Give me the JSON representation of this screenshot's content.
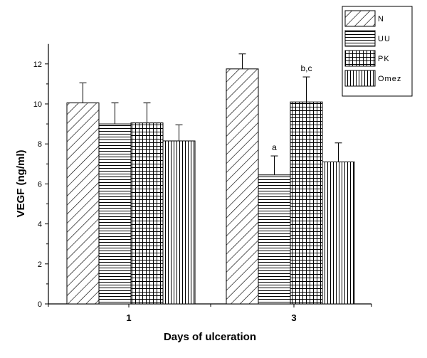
{
  "chart_data": {
    "type": "bar",
    "categories": [
      "1",
      "3"
    ],
    "series": [
      {
        "name": "N",
        "pattern": "diag",
        "values": [
          10.05,
          11.75
        ],
        "errors": [
          1.0,
          0.75
        ]
      },
      {
        "name": "UU",
        "pattern": "hlines",
        "values": [
          9.0,
          6.45
        ],
        "errors": [
          1.05,
          0.95
        ]
      },
      {
        "name": "PK",
        "pattern": "grid",
        "values": [
          9.05,
          10.1
        ],
        "errors": [
          1.0,
          1.25
        ]
      },
      {
        "name": "Omez",
        "pattern": "vlines",
        "values": [
          8.15,
          7.1
        ],
        "errors": [
          0.8,
          0.95
        ]
      }
    ],
    "annotations": [
      {
        "category_index": 1,
        "series_index": 1,
        "text": "a"
      },
      {
        "category_index": 1,
        "series_index": 2,
        "text": "b,c"
      }
    ],
    "xlabel": "Days of ulceration",
    "ylabel": "VEGF (ng/ml)",
    "ylim": [
      0,
      13
    ],
    "yticks": [
      0,
      2,
      4,
      6,
      8,
      10,
      12
    ],
    "legend_position": "top-right",
    "grid": false
  }
}
